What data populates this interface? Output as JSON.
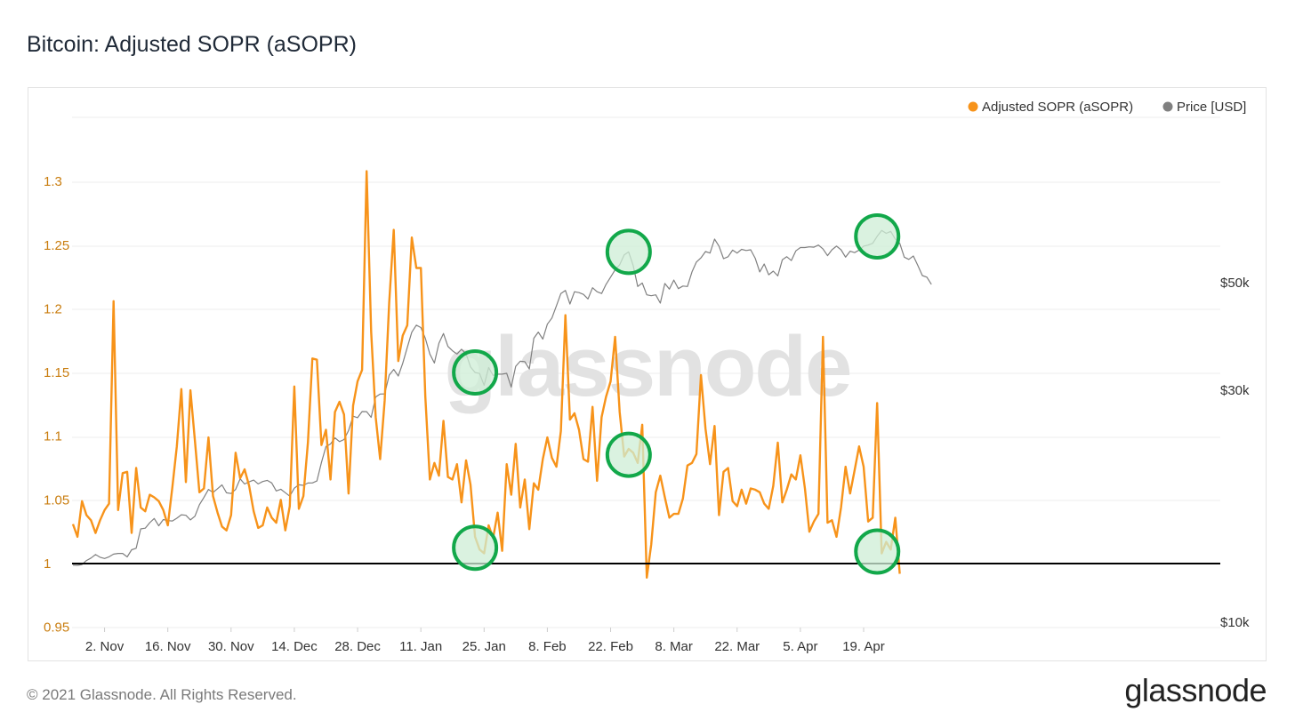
{
  "title": "Bitcoin: Adjusted SOPR (aSOPR)",
  "footer": {
    "copyright": "© 2021 Glassnode. All Rights Reserved.",
    "logo": "glassnode"
  },
  "watermark": "glassnode",
  "colors": {
    "asopr": "#f7931a",
    "price": "#808080",
    "left_axis": "#c97d0f",
    "baseline": "#000000",
    "highlight_stroke": "#12a84a",
    "highlight_fill": "#cdeed6"
  },
  "chart_data": {
    "type": "line",
    "x_labels": [
      "2. Nov",
      "16. Nov",
      "30. Nov",
      "14. Dec",
      "28. Dec",
      "11. Jan",
      "25. Jan",
      "8. Feb",
      "22. Feb",
      "8. Mar",
      "22. Mar",
      "5. Apr",
      "19. Apr"
    ],
    "y_left": {
      "ticks": [
        "0.95",
        "1",
        "1.05",
        "1.1",
        "1.15",
        "1.2",
        "1.25",
        "1.3"
      ],
      "range": [
        0.945,
        1.35
      ]
    },
    "y_right": {
      "ticks": [
        "$10k",
        "$30k",
        "$50k"
      ],
      "tick_values": [
        10000,
        30000,
        50000
      ],
      "scale": "log"
    },
    "grid": true,
    "legend_position": "top-right",
    "reference_line": 1.0,
    "series": [
      {
        "name": "Adjusted SOPR (aSOPR)",
        "axis": "left",
        "start_date": "2020-10-26",
        "values": [
          1.031,
          1.021,
          1.049,
          1.038,
          1.034,
          1.024,
          1.034,
          1.042,
          1.047,
          1.206,
          1.042,
          1.071,
          1.072,
          1.024,
          1.075,
          1.044,
          1.041,
          1.054,
          1.052,
          1.049,
          1.042,
          1.03,
          1.06,
          1.092,
          1.137,
          1.064,
          1.136,
          1.096,
          1.056,
          1.059,
          1.099,
          1.053,
          1.04,
          1.029,
          1.026,
          1.038,
          1.087,
          1.067,
          1.074,
          1.061,
          1.041,
          1.028,
          1.03,
          1.044,
          1.036,
          1.032,
          1.05,
          1.026,
          1.045,
          1.139,
          1.043,
          1.053,
          1.095,
          1.161,
          1.16,
          1.093,
          1.105,
          1.066,
          1.119,
          1.127,
          1.117,
          1.055,
          1.124,
          1.143,
          1.152,
          1.308,
          1.182,
          1.115,
          1.082,
          1.128,
          1.205,
          1.262,
          1.159,
          1.179,
          1.187,
          1.256,
          1.232,
          1.232,
          1.131,
          1.066,
          1.079,
          1.069,
          1.112,
          1.068,
          1.066,
          1.078,
          1.048,
          1.081,
          1.062,
          1.021,
          1.011,
          1.008,
          1.03,
          1.02,
          1.04,
          1.01,
          1.078,
          1.054,
          1.094,
          1.044,
          1.066,
          1.027,
          1.063,
          1.058,
          1.082,
          1.099,
          1.083,
          1.076,
          1.104,
          1.195,
          1.113,
          1.118,
          1.105,
          1.082,
          1.08,
          1.123,
          1.065,
          1.115,
          1.131,
          1.143,
          1.178,
          1.119,
          1.084,
          1.09,
          1.087,
          1.079,
          1.109,
          0.989,
          1.015,
          1.056,
          1.069,
          1.052,
          1.036,
          1.039,
          1.039,
          1.051,
          1.077,
          1.079,
          1.086,
          1.148,
          1.106,
          1.078,
          1.108,
          1.038,
          1.072,
          1.075,
          1.049,
          1.045,
          1.058,
          1.047,
          1.059,
          1.058,
          1.056,
          1.047,
          1.043,
          1.061,
          1.095,
          1.048,
          1.058,
          1.07,
          1.066,
          1.085,
          1.059,
          1.025,
          1.033,
          1.039,
          1.178,
          1.032,
          1.034,
          1.021,
          1.044,
          1.076,
          1.055,
          1.073,
          1.092,
          1.076,
          1.033,
          1.036,
          1.126,
          1.008,
          1.017,
          1.011,
          1.036,
          0.992
        ]
      },
      {
        "name": "Price [USD]",
        "axis": "right",
        "start_date": "2020-10-26",
        "values": [
          13050,
          13040,
          13090,
          13340,
          13500,
          13720,
          13550,
          13470,
          13580,
          13750,
          13800,
          13800,
          13570,
          14040,
          14140,
          15500,
          15550,
          15960,
          16280,
          15730,
          16200,
          16120,
          16090,
          16300,
          16570,
          16530,
          16170,
          16460,
          17380,
          17990,
          18690,
          18420,
          18750,
          19090,
          18390,
          18330,
          18690,
          19650,
          19170,
          19370,
          19530,
          19180,
          19400,
          19510,
          19270,
          18550,
          18700,
          18400,
          18100,
          18800,
          19100,
          19050,
          19260,
          19270,
          19450,
          21230,
          22900,
          23180,
          23860,
          23440,
          23670,
          24700,
          26440,
          26250,
          27030,
          27020,
          26300,
          28960,
          29370,
          29390,
          32130,
          33000,
          31990,
          33980,
          36620,
          39380,
          40700,
          40240,
          38240,
          35500,
          34020,
          37370,
          39120,
          36810,
          36060,
          35500,
          36320,
          35560,
          33410,
          32530,
          32370,
          30620,
          33300,
          32080,
          32260,
          32270,
          32400,
          30360,
          33490,
          34310,
          34250,
          33070,
          38270,
          39400,
          38100,
          40900,
          42100,
          44600,
          47300,
          48000,
          45000,
          47700,
          47500,
          47100,
          46100,
          48600,
          47700,
          47300,
          49400,
          51100,
          52900,
          54200,
          56800,
          57600,
          54000,
          48900,
          49700,
          47000,
          46800,
          47000,
          45200,
          49600,
          48300,
          50400,
          48400,
          49000,
          48900,
          52400,
          54900,
          56000,
          57700,
          57300,
          61200,
          59200,
          55800,
          56300,
          58100,
          57300,
          58300,
          58000,
          58200,
          55900,
          52400,
          54400,
          51700,
          52600,
          51400,
          55500,
          56300,
          55300,
          57900,
          58800,
          58800,
          59000,
          58900,
          59500,
          58400,
          56600,
          58200,
          59200,
          58200,
          56200,
          57800,
          57400,
          58100,
          59200,
          59500,
          60000,
          62000,
          63800,
          62900,
          63500,
          61200,
          60000,
          56200,
          55600,
          56500,
          54000,
          51500,
          51100,
          49400
        ]
      }
    ]
  },
  "legend": [
    {
      "label": "Adjusted SOPR (aSOPR)",
      "color": "#f7931a"
    },
    {
      "label": "Price [USD]",
      "color": "#808080"
    }
  ],
  "highlights": [
    {
      "date": "2021-01-23",
      "series": "Price [USD]",
      "label": ""
    },
    {
      "date": "2021-02-26",
      "series": "Price [USD]",
      "label": ""
    },
    {
      "date": "2021-04-22",
      "series": "Price [USD]",
      "label": ""
    },
    {
      "date": "2021-01-23",
      "series": "Adjusted SOPR (aSOPR)",
      "label": ""
    },
    {
      "date": "2021-02-26",
      "series": "Adjusted SOPR (aSOPR)",
      "label": ""
    },
    {
      "date": "2021-04-22",
      "series": "Adjusted SOPR (aSOPR)",
      "label": ""
    }
  ]
}
